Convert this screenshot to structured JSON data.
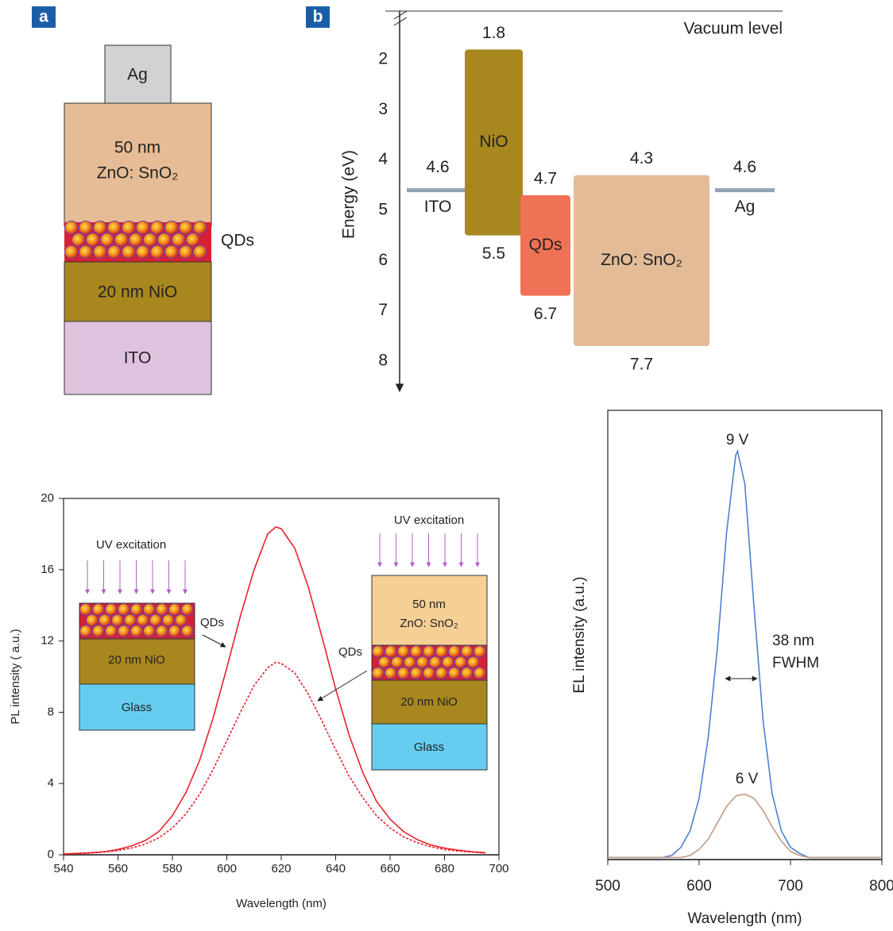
{
  "panel_a": {
    "letter": "a",
    "ag": "Ag",
    "top_layer": [
      "50 nm",
      "ZnO: SnO₂"
    ],
    "qd": "QDs",
    "htl": "20 nm NiO",
    "substrate": "ITO"
  },
  "chart_data": [
    {
      "type": "band",
      "letter": "b",
      "ylabel": "Energy (eV)",
      "vacuum_label": "Vacuum level",
      "ylim": [
        8.6,
        1
      ],
      "yticks": [
        2,
        3,
        4,
        5,
        6,
        7,
        8
      ],
      "materials": [
        {
          "name": "ITO",
          "work_function": 4.6,
          "color": "#93a3b3"
        },
        {
          "name": "NiO",
          "top": 1.8,
          "bottom": 5.5,
          "color": "#a8871f"
        },
        {
          "name": "QDs",
          "top": 4.7,
          "bottom": 6.7,
          "color": "#f07256"
        },
        {
          "name": "ZnO: SnO₂",
          "top": 4.3,
          "bottom": 7.7,
          "color": "#e3bb96"
        },
        {
          "name": "Ag",
          "work_function": 4.6,
          "color": "#93a3b3"
        }
      ]
    },
    {
      "type": "line",
      "xlabel": "Wavelength (nm)",
      "ylabel": "PL intensity ( a.u.)",
      "xlim": [
        540,
        700
      ],
      "xticks": [
        540,
        560,
        580,
        600,
        620,
        640,
        660,
        680,
        700
      ],
      "ylim": [
        0,
        20
      ],
      "yticks": [
        0,
        4,
        8,
        12,
        16,
        20
      ],
      "x": [
        540,
        545,
        550,
        555,
        560,
        565,
        570,
        575,
        580,
        585,
        590,
        595,
        600,
        605,
        610,
        615,
        618,
        620,
        625,
        630,
        635,
        640,
        645,
        650,
        655,
        660,
        665,
        670,
        675,
        680,
        685,
        690,
        695
      ],
      "series": [
        {
          "color": "#e8222b",
          "dash": false,
          "values": [
            0.05,
            0.08,
            0.12,
            0.18,
            0.3,
            0.5,
            0.8,
            1.3,
            2.2,
            3.5,
            5.3,
            7.7,
            10.5,
            13.4,
            16.0,
            18.0,
            18.4,
            18.3,
            17.2,
            15.0,
            12.2,
            9.3,
            6.7,
            4.6,
            3.0,
            2.0,
            1.3,
            0.85,
            0.55,
            0.38,
            0.26,
            0.18,
            0.12
          ]
        },
        {
          "color": "#e8222b",
          "dash": true,
          "values": [
            0.04,
            0.06,
            0.1,
            0.15,
            0.24,
            0.38,
            0.6,
            0.95,
            1.5,
            2.3,
            3.4,
            4.8,
            6.4,
            8.0,
            9.5,
            10.5,
            10.8,
            10.75,
            10.2,
            9.0,
            7.5,
            5.9,
            4.4,
            3.2,
            2.2,
            1.5,
            1.0,
            0.68,
            0.45,
            0.3,
            0.21,
            0.15,
            0.1
          ]
        }
      ],
      "insets": [
        {
          "excitation": "UV excitation",
          "qd": "QDs",
          "layers": [
            "20 nm NiO",
            "Glass"
          ]
        },
        {
          "excitation": "UV excitation",
          "qd": "QDs",
          "top_layer": [
            "50 nm",
            "ZnO: SnO₂"
          ],
          "layers": [
            "20 nm NiO",
            "Glass"
          ]
        }
      ]
    },
    {
      "type": "line",
      "xlabel": "Wavelength (nm)",
      "ylabel": "EL intensity (a.u.)",
      "xlim": [
        500,
        800
      ],
      "xticks": [
        500,
        600,
        700,
        800
      ],
      "ylim": [
        0,
        1.1
      ],
      "x": [
        500,
        510,
        520,
        530,
        540,
        550,
        560,
        570,
        580,
        590,
        600,
        610,
        620,
        630,
        640,
        642,
        650,
        660,
        670,
        680,
        690,
        700,
        710,
        720,
        730,
        740,
        750,
        760,
        770,
        780,
        790,
        800
      ],
      "series": [
        {
          "color": "#4d80cf",
          "dash": false,
          "values": [
            0.005,
            0.005,
            0.005,
            0.005,
            0.005,
            0.005,
            0.005,
            0.01,
            0.03,
            0.07,
            0.15,
            0.3,
            0.52,
            0.8,
            0.99,
            1.0,
            0.92,
            0.62,
            0.34,
            0.16,
            0.07,
            0.03,
            0.015,
            0.005,
            0.005,
            0.005,
            0.005,
            0.005,
            0.005,
            0.005,
            0.005,
            0.005
          ]
        },
        {
          "color": "#c49a82",
          "dash": false,
          "values": [
            0.005,
            0.005,
            0.005,
            0.005,
            0.005,
            0.005,
            0.005,
            0.005,
            0.005,
            0.01,
            0.025,
            0.05,
            0.09,
            0.13,
            0.155,
            0.157,
            0.16,
            0.15,
            0.12,
            0.08,
            0.045,
            0.02,
            0.01,
            0.005,
            0.005,
            0.005,
            0.005,
            0.005,
            0.005,
            0.005,
            0.005,
            0.005
          ]
        }
      ],
      "annotations": [
        "9 V",
        "6 V",
        "38 nm",
        "FWHM"
      ]
    }
  ]
}
